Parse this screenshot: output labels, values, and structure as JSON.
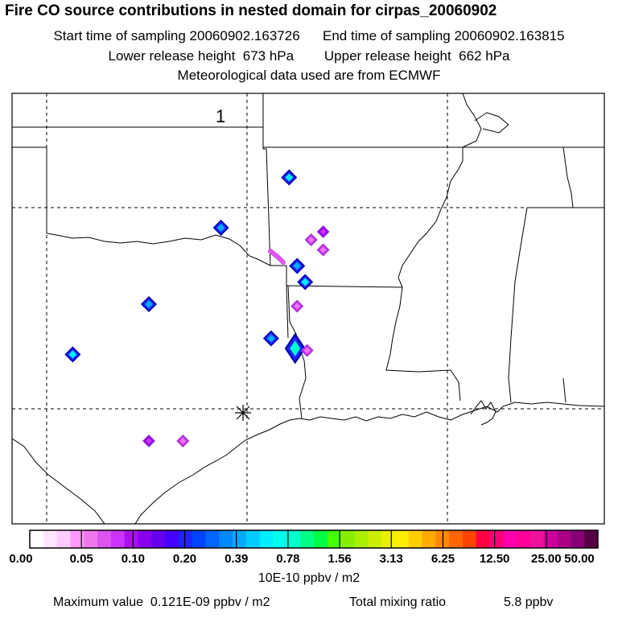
{
  "header": {
    "title": "Fire CO source contributions in nested domain for cirpas_20060902",
    "start_label": "Start time of sampling 20060902.163726",
    "end_label": "End time of sampling 20060902.163815",
    "lower_label": "Lower release height  673 hPa",
    "upper_label": "Upper release height  662 hPa",
    "met_label": "Meteorological data used are from ECMWF"
  },
  "map": {
    "marker_number": "1",
    "hotspots": [
      {
        "lon": -93.95,
        "lat": 35.75,
        "level": 5
      },
      {
        "lon": -95.65,
        "lat": 34.5,
        "level": 4
      },
      {
        "lon": -93.1,
        "lat": 34.4,
        "level": 3
      },
      {
        "lon": -93.4,
        "lat": 34.2,
        "level": 2
      },
      {
        "lon": -93.1,
        "lat": 33.95,
        "level": 2
      },
      {
        "lon": -93.75,
        "lat": 33.55,
        "level": 4
      },
      {
        "lon": -93.55,
        "lat": 33.15,
        "level": 5
      },
      {
        "lon": -93.75,
        "lat": 32.55,
        "level": 2
      },
      {
        "lon": -97.45,
        "lat": 32.6,
        "level": 4
      },
      {
        "lon": -94.4,
        "lat": 31.75,
        "level": 4
      },
      {
        "lon": -93.8,
        "lat": 31.5,
        "level": 6
      },
      {
        "lon": -93.5,
        "lat": 31.45,
        "level": 2
      },
      {
        "lon": -99.35,
        "lat": 31.35,
        "level": 5
      },
      {
        "lon": -97.45,
        "lat": 29.2,
        "level": 3
      },
      {
        "lon": -96.6,
        "lat": 29.2,
        "level": 2
      }
    ],
    "source_lon": -95.1,
    "source_lat": 29.9
  },
  "colorbar": {
    "colors": [
      "#ffffff",
      "#ffe6ff",
      "#ffccff",
      "#ff99ff",
      "#ee77ee",
      "#dd55ee",
      "#cc33ff",
      "#aa11ee",
      "#8800ee",
      "#6600ee",
      "#4400ff",
      "#2222ff",
      "#0044ff",
      "#0066ff",
      "#0088ff",
      "#00aaff",
      "#00ccff",
      "#00eeff",
      "#00ffee",
      "#00ffcc",
      "#00ff88",
      "#00ff44",
      "#44ff00",
      "#88ee00",
      "#aaee00",
      "#ccee00",
      "#eeee00",
      "#ffee00",
      "#ffcc00",
      "#ffaa00",
      "#ff8800",
      "#ff6600",
      "#ff4400",
      "#ff0044",
      "#ff0077",
      "#ff00aa",
      "#ff0099",
      "#ee1199",
      "#cc0099",
      "#aa0088",
      "#880077",
      "#550044"
    ],
    "tick_labels": [
      "0.00",
      "0.05",
      "0.10",
      "0.20",
      "0.39",
      "0.78",
      "1.56",
      "3.13",
      "6.25",
      "12.50",
      "25.00",
      "50.00"
    ],
    "units": "10E-10 ppbv / m2"
  },
  "footer": {
    "max_label": "Maximum value  0.121E-09 ppbv / m2",
    "total_label": "Total mixing ratio",
    "total_value": "5.8 ppbv"
  }
}
